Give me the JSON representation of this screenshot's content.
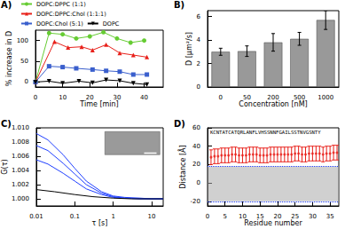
{
  "chart_data": [
    {
      "type": "line",
      "label": "A)",
      "xlabel": "Time [min]",
      "ylabel": "% increase in D",
      "xlim": [
        0,
        47
      ],
      "xticks": [
        0,
        10,
        20,
        30,
        40
      ],
      "ylim": [
        -12,
        125
      ],
      "yticks": [
        0,
        50,
        100
      ],
      "legend": "top",
      "series": [
        {
          "name": "DOPC:DPPC (1:1)",
          "color": "#66cc33",
          "marker": "circle",
          "x": [
            0,
            5,
            10,
            15,
            20,
            25,
            30,
            35,
            40
          ],
          "values": [
            0,
            118,
            115,
            105,
            110,
            120,
            105,
            95,
            100
          ]
        },
        {
          "name": "DOPC:DPPC:Chol (1:1:1)",
          "color": "#e8201a",
          "marker": "triangle",
          "x": [
            0,
            7,
            12,
            17,
            21,
            26,
            31,
            36,
            41
          ],
          "values": [
            0,
            97,
            83,
            85,
            77,
            90,
            70,
            65,
            60
          ]
        },
        {
          "name": "DOPC:Chol (5:1)",
          "color": "#3a5fcd",
          "marker": "square",
          "x": [
            0,
            5,
            10,
            15,
            21,
            26,
            31,
            36,
            41
          ],
          "values": [
            0,
            38,
            36,
            33,
            30,
            27,
            25,
            18,
            18
          ]
        },
        {
          "name": "DOPC",
          "color": "#000000",
          "marker": "triangle-down",
          "x": [
            0,
            5,
            10,
            16,
            21,
            26,
            31,
            36,
            41
          ],
          "values": [
            0,
            2,
            -3,
            2,
            -2,
            5,
            3,
            -3,
            -6
          ]
        }
      ]
    },
    {
      "type": "bar",
      "label": "B)",
      "xlabel": "Concentration [nM]",
      "ylabel": "D [μm²/s]",
      "categories": [
        "0",
        "50",
        "200",
        "500",
        "1000"
      ],
      "values": [
        3.0,
        3.05,
        3.8,
        4.1,
        5.7
      ],
      "errors": [
        0.3,
        0.45,
        0.75,
        0.55,
        0.8
      ],
      "color": "#999999",
      "ylim": [
        0,
        6.5
      ],
      "yticks": [
        0,
        2,
        4,
        6
      ]
    },
    {
      "type": "line",
      "label": "C)",
      "xlabel": "τ [s]",
      "ylabel": "G(τ)",
      "log": "x",
      "xlim": [
        0.01,
        20
      ],
      "xticks": [
        0.01,
        0.1,
        1,
        10
      ],
      "ylim": [
        0.999,
        1.01
      ],
      "yticks": [
        {
          "value": 1.0,
          "label": "1.000"
        },
        {
          "value": 1.002,
          "label": "1.002"
        },
        {
          "value": 1.004,
          "label": "1.004"
        },
        {
          "value": 1.006,
          "label": "1.006"
        },
        {
          "value": 1.008,
          "label": "1.008"
        },
        {
          "value": 1.01,
          "label": "1.010"
        }
      ],
      "series": [
        {
          "color": "#1f3fff",
          "x": [
            0.01,
            0.02,
            0.05,
            0.1,
            0.2,
            0.5,
            1,
            2,
            5,
            10,
            20
          ],
          "values": [
            1.0092,
            1.0083,
            1.0062,
            1.0043,
            1.0025,
            1.001,
            1.0004,
            1.0002,
            1.0001,
            1.0,
            1.0
          ]
        },
        {
          "color": "#1f3fff",
          "x": [
            0.01,
            0.02,
            0.05,
            0.1,
            0.2,
            0.5,
            1,
            2,
            5,
            10,
            20
          ],
          "values": [
            1.0075,
            1.0068,
            1.005,
            1.0035,
            1.002,
            1.0008,
            1.0003,
            1.0001,
            1.0,
            1.0,
            1.0
          ]
        },
        {
          "color": "#1f3fff",
          "x": [
            0.01,
            0.02,
            0.05,
            0.1,
            0.2,
            0.5,
            1,
            2,
            5,
            10,
            20
          ],
          "values": [
            1.0055,
            1.0049,
            1.0036,
            1.0025,
            1.0014,
            1.0006,
            1.0002,
            1.0001,
            1.0,
            1.0,
            1.0
          ]
        },
        {
          "color": "#000000",
          "x": [
            0.01,
            0.03,
            0.1,
            0.3,
            1,
            3,
            10,
            20
          ],
          "values": [
            1.0013,
            1.001,
            1.0006,
            1.0003,
            1.0001,
            1.0,
            1.0,
            1.0
          ]
        }
      ]
    },
    {
      "type": "scatter",
      "label": "D)",
      "xlabel": "Residue number",
      "ylabel": "Distance [Å]",
      "sequence": "KCNTATCATQRLANFLVHSSNNFGAILSSTNVGSNTY",
      "x": [
        1,
        2,
        3,
        4,
        5,
        6,
        7,
        8,
        9,
        10,
        11,
        12,
        13,
        14,
        15,
        16,
        17,
        18,
        19,
        20,
        21,
        22,
        23,
        24,
        25,
        26,
        27,
        28,
        29,
        30,
        31,
        32,
        33,
        34,
        35,
        36,
        37
      ],
      "values": [
        28,
        29,
        29,
        30,
        30,
        30,
        31,
        31,
        30,
        30,
        30,
        31,
        31,
        31,
        30,
        30,
        30,
        31,
        31,
        31,
        31,
        31,
        31,
        31,
        32,
        32,
        31,
        31,
        32,
        32,
        32,
        32,
        31,
        32,
        32,
        33,
        33
      ],
      "errors": [
        8,
        8,
        8,
        8,
        8,
        8,
        8,
        8,
        8,
        8,
        8,
        8,
        8,
        8,
        8,
        8,
        8,
        8,
        8,
        8,
        8,
        8,
        8,
        8,
        8,
        8,
        8,
        8,
        8,
        8,
        8,
        8,
        8,
        8,
        8,
        8,
        8
      ],
      "color": "#e8201a",
      "membrane": [
        -20,
        18
      ],
      "xlim": [
        0,
        37.5
      ],
      "xticks": [
        0,
        5,
        10,
        15,
        20,
        25,
        30,
        35
      ],
      "ylim": [
        -25,
        60
      ],
      "yticks": [
        -20,
        0,
        20,
        40,
        60
      ]
    }
  ]
}
